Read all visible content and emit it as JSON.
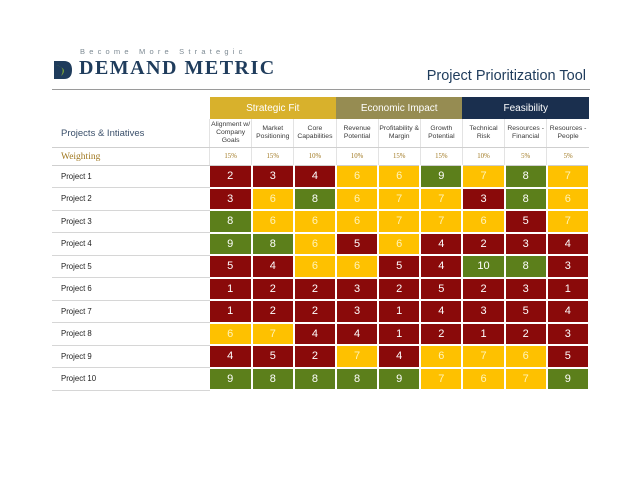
{
  "brand": {
    "tagline": "Become More Strategic",
    "name": "DEMAND METRIC"
  },
  "title": "Project Prioritization Tool",
  "groups": [
    {
      "label": "Strategic Fit",
      "span": 3,
      "color": "#d8b12c"
    },
    {
      "label": "Economic Impact",
      "span": 3,
      "color": "#968c52"
    },
    {
      "label": "Feasibility",
      "span": 3,
      "color": "#1a2f4e"
    }
  ],
  "name_header": "Projects & Intiatives",
  "weighting_label": "Weighting",
  "criteria": [
    "Alignment w/ Company Goals",
    "Market Positioning",
    "Core Capabilities",
    "Revenue Potential",
    "Profitability & Margin",
    "Growth Potential",
    "Technical Risk",
    "Resources - Financial",
    "Resources - People"
  ],
  "weights": [
    "15%",
    "15%",
    "10%",
    "10%",
    "15%",
    "15%",
    "10%",
    "5%",
    "5%"
  ],
  "score_colors": {
    "red": "#8a0a0a",
    "yellow": "#fec100",
    "green": "#5c7f1b"
  },
  "projects": [
    {
      "name": "Project 1",
      "scores": [
        "2",
        "3",
        "4",
        "6",
        "6",
        "9",
        "7",
        "8",
        "7"
      ],
      "colors": [
        "red",
        "red",
        "red",
        "yellow",
        "yellow",
        "green",
        "yellow",
        "green",
        "yellow"
      ]
    },
    {
      "name": "Project 2",
      "scores": [
        "3",
        "6",
        "8",
        "6",
        "7",
        "7",
        "3",
        "8",
        "6"
      ],
      "colors": [
        "red",
        "yellow",
        "green",
        "yellow",
        "yellow",
        "yellow",
        "red",
        "green",
        "yellow"
      ]
    },
    {
      "name": "Project 3",
      "scores": [
        "8",
        "6",
        "6",
        "6",
        "7",
        "7",
        "6",
        "5",
        "7"
      ],
      "colors": [
        "green",
        "yellow",
        "yellow",
        "yellow",
        "yellow",
        "yellow",
        "yellow",
        "red",
        "yellow"
      ]
    },
    {
      "name": "Project 4",
      "scores": [
        "9",
        "8",
        "6",
        "5",
        "6",
        "4",
        "2",
        "3",
        "4"
      ],
      "colors": [
        "green",
        "green",
        "yellow",
        "red",
        "yellow",
        "red",
        "red",
        "red",
        "red"
      ]
    },
    {
      "name": "Project 5",
      "scores": [
        "5",
        "4",
        "6",
        "6",
        "5",
        "4",
        "10",
        "8",
        "3"
      ],
      "colors": [
        "red",
        "red",
        "yellow",
        "yellow",
        "red",
        "red",
        "green",
        "green",
        "red"
      ]
    },
    {
      "name": "Project 6",
      "scores": [
        "1",
        "2",
        "2",
        "3",
        "2",
        "5",
        "2",
        "3",
        "1"
      ],
      "colors": [
        "red",
        "red",
        "red",
        "red",
        "red",
        "red",
        "red",
        "red",
        "red"
      ]
    },
    {
      "name": "Project 7",
      "scores": [
        "1",
        "2",
        "2",
        "3",
        "1",
        "4",
        "3",
        "5",
        "4"
      ],
      "colors": [
        "red",
        "red",
        "red",
        "red",
        "red",
        "red",
        "red",
        "red",
        "red"
      ]
    },
    {
      "name": "Project 8",
      "scores": [
        "6",
        "7",
        "4",
        "4",
        "1",
        "2",
        "1",
        "2",
        "3"
      ],
      "colors": [
        "yellow",
        "yellow",
        "red",
        "red",
        "red",
        "red",
        "red",
        "red",
        "red"
      ]
    },
    {
      "name": "Project 9",
      "scores": [
        "4",
        "5",
        "2",
        "7",
        "4",
        "6",
        "7",
        "6",
        "5"
      ],
      "colors": [
        "red",
        "red",
        "red",
        "yellow",
        "red",
        "yellow",
        "yellow",
        "yellow",
        "red"
      ]
    },
    {
      "name": "Project 10",
      "scores": [
        "9",
        "8",
        "8",
        "8",
        "9",
        "7",
        "6",
        "7",
        "9"
      ],
      "colors": [
        "green",
        "green",
        "green",
        "green",
        "green",
        "yellow",
        "yellow",
        "yellow",
        "green"
      ]
    }
  ]
}
